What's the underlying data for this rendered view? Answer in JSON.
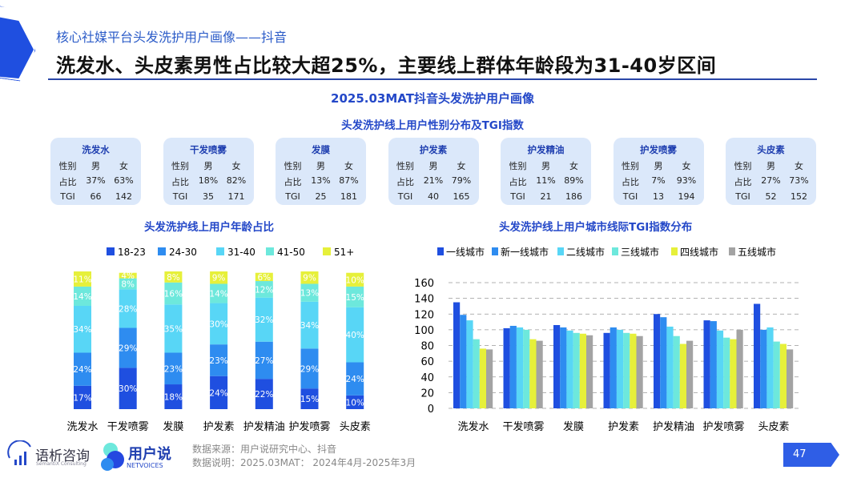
{
  "header": {
    "subtitle": "核心社媒平台头发洗护用户画像——抖音",
    "title": "洗发水、头皮素男性占比较大超25%，主要线上群体年龄段为31-40岁区间"
  },
  "main_title": "2025.03MAT抖音头发洗护用户画像",
  "gender_title": "头发洗护线上用户性别分布及TGI指数",
  "gender_table": {
    "row_labels": [
      "性别",
      "占比",
      "TGI"
    ],
    "cols": [
      "男",
      "女"
    ],
    "items": [
      {
        "name": "洗发水",
        "share": [
          "37%",
          "63%"
        ],
        "tgi": [
          "66",
          "142"
        ]
      },
      {
        "name": "干发喷雾",
        "share": [
          "18%",
          "82%"
        ],
        "tgi": [
          "35",
          "171"
        ]
      },
      {
        "name": "发膜",
        "share": [
          "13%",
          "87%"
        ],
        "tgi": [
          "25",
          "181"
        ]
      },
      {
        "name": "护发素",
        "share": [
          "21%",
          "79%"
        ],
        "tgi": [
          "40",
          "165"
        ]
      },
      {
        "name": "护发精油",
        "share": [
          "11%",
          "89%"
        ],
        "tgi": [
          "21",
          "186"
        ]
      },
      {
        "name": "护发喷雾",
        "share": [
          "7%",
          "93%"
        ],
        "tgi": [
          "13",
          "194"
        ]
      },
      {
        "name": "头皮素",
        "share": [
          "27%",
          "73%"
        ],
        "tgi": [
          "52",
          "152"
        ]
      }
    ]
  },
  "chart_data": [
    {
      "type": "bar",
      "stacked": true,
      "title": "头发洗护线上用户年龄占比",
      "categories": [
        "洗发水",
        "干发喷雾",
        "发膜",
        "护发素",
        "护发精油",
        "护发喷雾",
        "头皮素"
      ],
      "legend": "top",
      "unit": "%",
      "series": [
        {
          "name": "18-23",
          "color": "#1f4fe0",
          "values": [
            17,
            30,
            18,
            24,
            22,
            15,
            10
          ]
        },
        {
          "name": "24-30",
          "color": "#2e8cf0",
          "values": [
            24,
            29,
            23,
            23,
            27,
            29,
            24
          ]
        },
        {
          "name": "31-40",
          "color": "#58d6f6",
          "values": [
            34,
            28,
            35,
            30,
            32,
            34,
            40
          ]
        },
        {
          "name": "41-50",
          "color": "#6de8dc",
          "values": [
            14,
            8,
            16,
            14,
            12,
            13,
            15
          ]
        },
        {
          "name": "51+",
          "color": "#e6f03a",
          "values": [
            11,
            4,
            8,
            9,
            6,
            9,
            10
          ]
        }
      ]
    },
    {
      "type": "bar",
      "title": "头发洗护线上用户城市线际TGI指数分布",
      "categories": [
        "洗发水",
        "干发喷雾",
        "发膜",
        "护发素",
        "护发精油",
        "护发喷雾",
        "头皮素"
      ],
      "ylim": [
        0,
        160
      ],
      "yticks": [
        0,
        20,
        40,
        60,
        80,
        100,
        120,
        140,
        160
      ],
      "grid": true,
      "legend": "top",
      "series": [
        {
          "name": "一线城市",
          "color": "#1f4fe0",
          "values": [
            135,
            102,
            106,
            96,
            120,
            112,
            133
          ]
        },
        {
          "name": "新一线城市",
          "color": "#2e8cf0",
          "values": [
            119,
            105,
            103,
            103,
            116,
            111,
            100
          ]
        },
        {
          "name": "二线城市",
          "color": "#58d6f6",
          "values": [
            112,
            103,
            99,
            100,
            104,
            99,
            103
          ]
        },
        {
          "name": "三线城市",
          "color": "#6de8dc",
          "values": [
            88,
            100,
            96,
            96,
            92,
            90,
            85
          ]
        },
        {
          "name": "四线城市",
          "color": "#e6f03a",
          "values": [
            76,
            88,
            95,
            95,
            82,
            88,
            82
          ]
        },
        {
          "name": "五线城市",
          "color": "#a3a3a3",
          "values": [
            75,
            86,
            93,
            92,
            86,
            100,
            75
          ]
        }
      ]
    }
  ],
  "footer": {
    "logo1": "语析咨询",
    "logo1_sub": "SemantiX Consulting",
    "logo2": "用户说",
    "logo2_sub": "NETVOICES",
    "source": "数据来源：用户说研究中心、抖音",
    "note": "数据说明：2025.03MAT： 2024年4月-2025年3月",
    "page": "47"
  }
}
